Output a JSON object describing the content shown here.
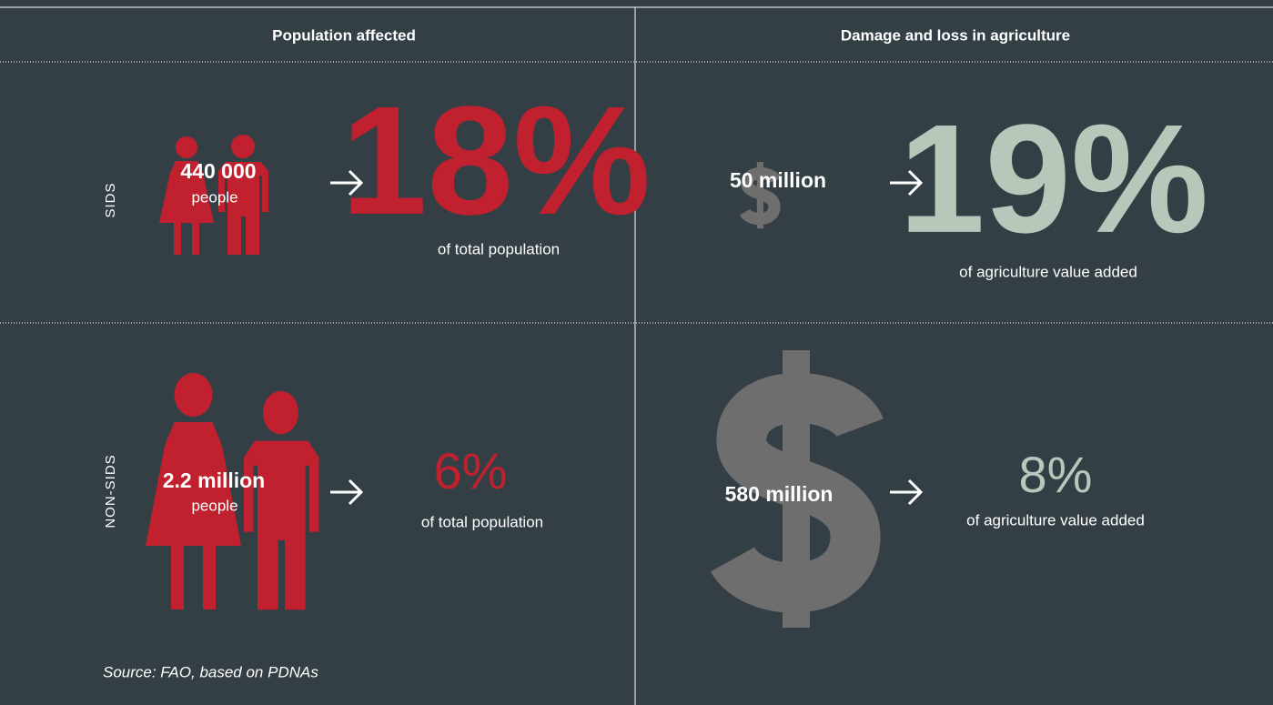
{
  "headers": [
    "Population affected",
    "Damage and loss in agriculture"
  ],
  "rows": [
    {
      "label": "SIDS",
      "population": {
        "count": "440 000",
        "unit": "people",
        "share": "18%",
        "share_label": "of total population"
      },
      "damage": {
        "amount": "50 million",
        "share": "19%",
        "share_label": "of agriculture value added"
      }
    },
    {
      "label": "NON-SIDS",
      "population": {
        "count": "2.2 million",
        "unit": "people",
        "share": "6%",
        "share_label": "of total population"
      },
      "damage": {
        "amount": "580 million",
        "share": "8%",
        "share_label": "of agriculture value added"
      }
    }
  ],
  "source": "Source: FAO, based on PDNAs"
}
